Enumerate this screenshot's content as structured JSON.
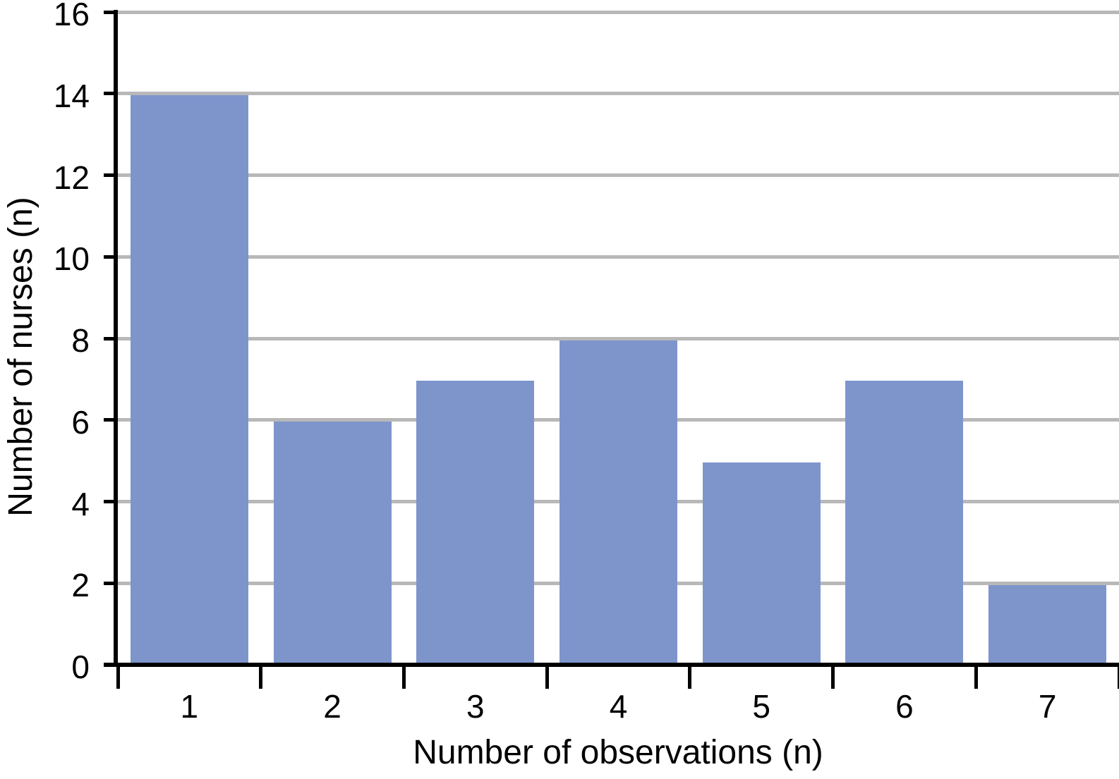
{
  "chart_data": {
    "type": "bar",
    "categories": [
      "1",
      "2",
      "3",
      "4",
      "5",
      "6",
      "7"
    ],
    "values": [
      14,
      6,
      7,
      8,
      5,
      7,
      2
    ],
    "title": "",
    "xlabel": "Number of observations (n)",
    "ylabel": "Number of nurses (n)",
    "ylim": [
      0,
      16
    ],
    "yticks": [
      0,
      2,
      4,
      6,
      8,
      10,
      12,
      14,
      16
    ],
    "grid": "horizontal-only",
    "legend_position": "none",
    "bar_color": "#7e95cc",
    "gridline_color": "#b8b8b8",
    "axis_color": "#000000",
    "text_color": "#000000",
    "background_color": "#ffffff"
  }
}
